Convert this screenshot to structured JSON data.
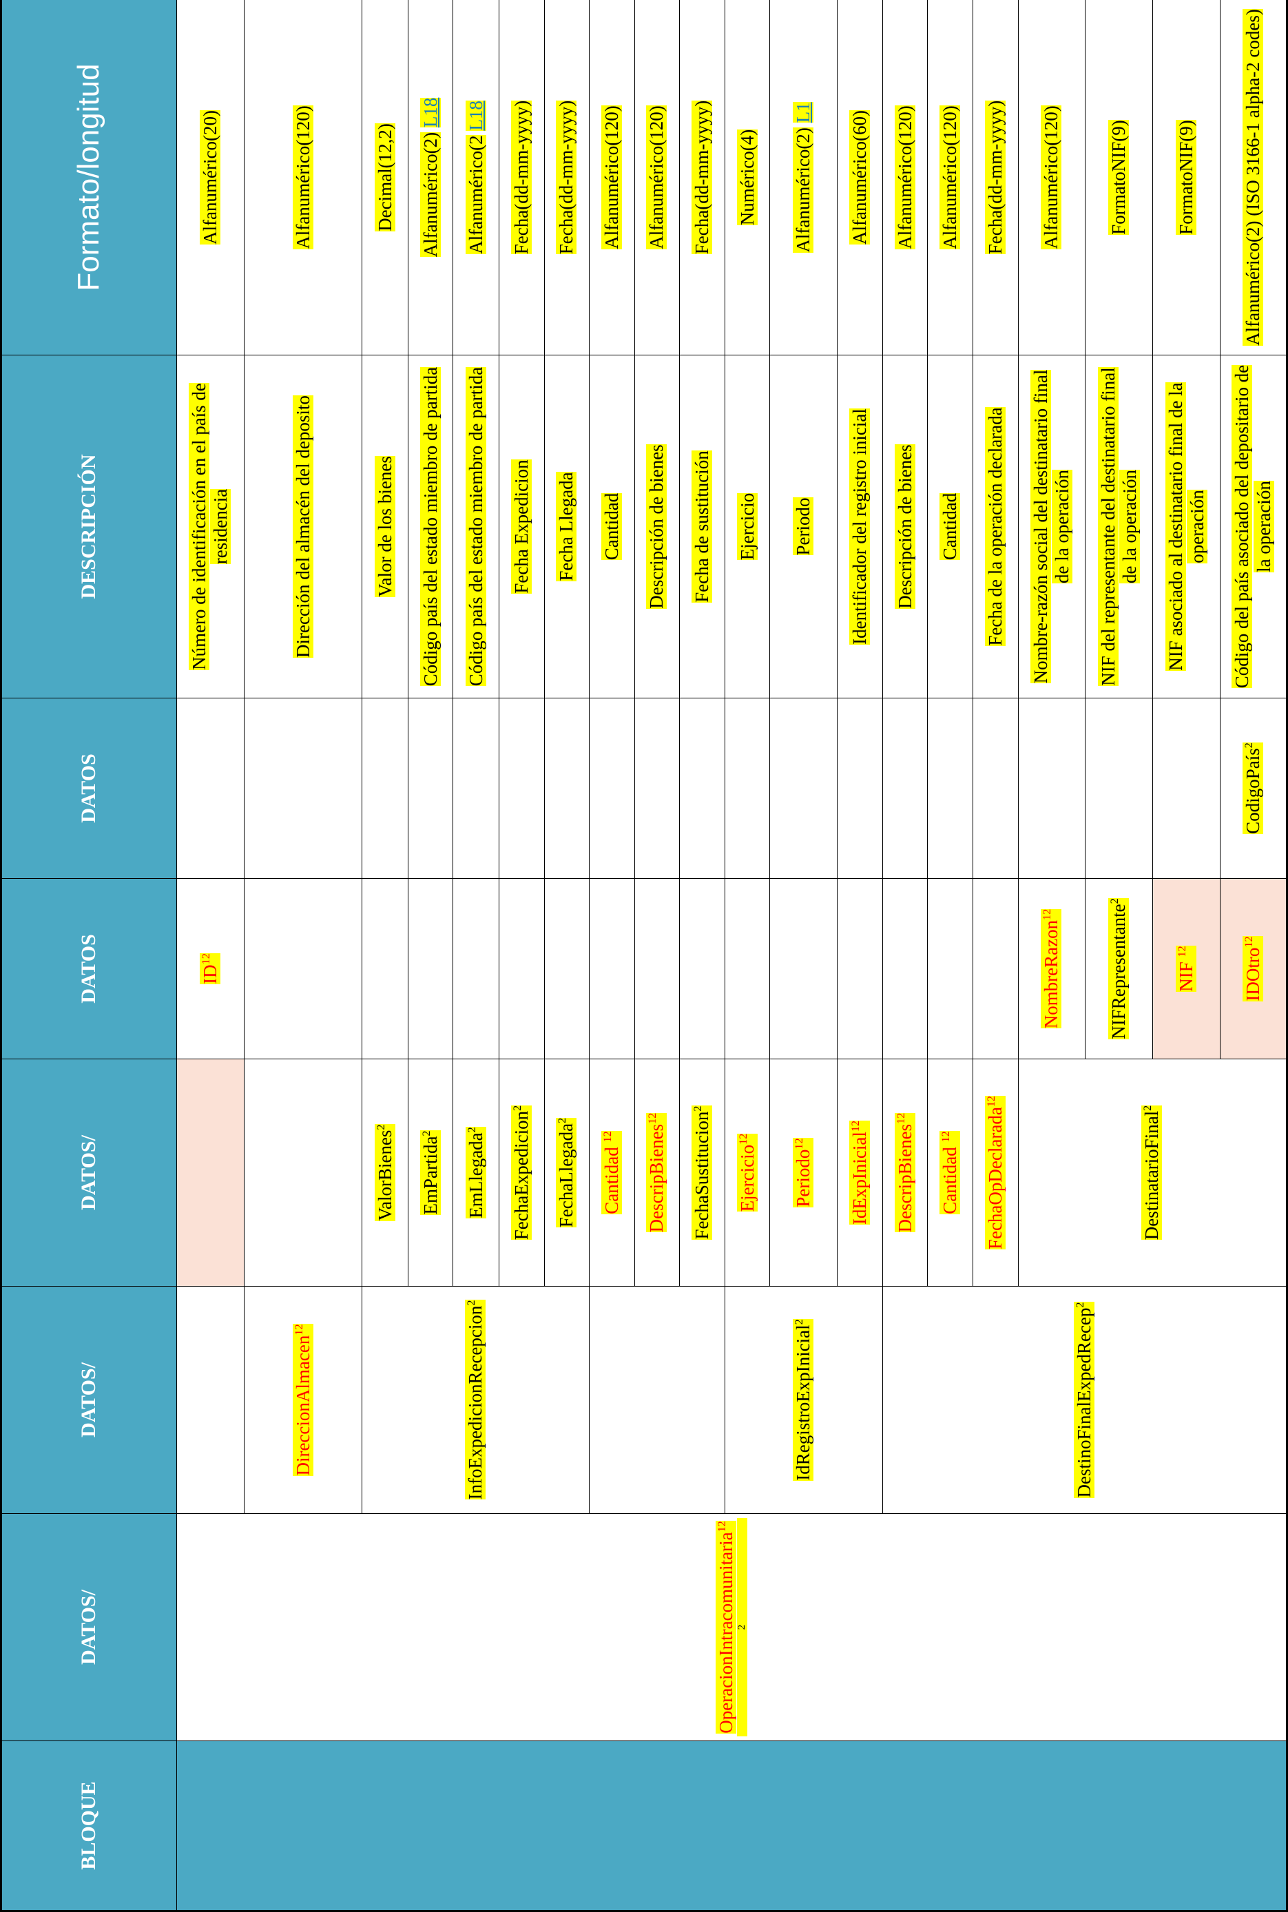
{
  "headers": {
    "bloque": "BLOQUE",
    "datos1": "DATOS/",
    "datos2": "DATOS/",
    "datos3": "DATOS/",
    "datos4": "DATOS",
    "datos5": "DATOS",
    "descripcion": "DESCRIPCIÓN",
    "formato": "Formato/longitud"
  },
  "sup": {
    "s2": "2",
    "s12": "12"
  },
  "level1": {
    "operacion": "OperacionIntracomunitaria"
  },
  "level2": {
    "direccion": "DireccionAlmacen",
    "info": "InfoExpedicionRecepcion",
    "idregistro": "IdRegistroExpInicial",
    "destino": "DestinoFinalExpedRecep"
  },
  "level3": {
    "valor": "ValorBienes",
    "empartida": "EmPartida",
    "emllegada": "EmLlegada",
    "fechaexp": "FechaExpedicion",
    "fechalleg": "FechaLlegada",
    "cantidad1": "Cantidad ",
    "descrip1": "DescripBienes",
    "fechasust": "FechaSustitucion",
    "ejercicio": "Ejercicio",
    "periodo": "Periodo",
    "idexp": "IdExpInicial",
    "descrip2": "DescripBienes",
    "cantidad2": "Cantidad ",
    "fechaop": "FechaOpDeclarada",
    "destinatario": "DestinatarioFinal"
  },
  "level4": {
    "id": "ID",
    "nombre": "NombreRazon",
    "nifrep": "NIFRepresentante",
    "nif": "NIF ",
    "idotro": "IDOtro"
  },
  "level5": {
    "codigo": "CodigoPaís"
  },
  "descripciones": [
    "Número de identificación en el país de residencia",
    "Dirección del almacén del deposito",
    "Valor de los bienes",
    "Código país del estado miembro de partida",
    "Código país del estado miembro de partida",
    "Fecha Expedicion",
    "Fecha Llegada",
    "Cantidad",
    "Descripción de bienes",
    "Fecha de sustitución",
    "Ejercicio",
    "Periodo",
    "Identificador del registro inicial",
    "Descripción de bienes",
    "Cantidad",
    "Fecha de la operación declarada",
    "Nombre-razón social del destinatario final de la operación",
    "NIF del representante del destinatario final de la operación",
    "NIF asociado al destinatario final de la operación",
    "Código del país asociado del depositario de la operación"
  ],
  "formatos": [
    "Alfanumérico(20)",
    "Alfanumérico(120)",
    "Decimal(12,2)",
    "Alfanumérico(2)",
    "Alfanumérico(2",
    "Fecha(dd-mm-yyyy)",
    "Fecha(dd-mm-yyyy)",
    "Alfanumérico(120)",
    "Alfanumérico(120)",
    "Fecha(dd-mm-yyyy)",
    "Numérico(4)",
    "Alfanumérico(2)",
    "Alfanumérico(60)",
    "Alfanumérico(120)",
    "Alfanumérico(120)",
    "Fecha(dd-mm-yyyy)",
    "Alfanumérico(120)",
    "FormatoNIF(9)",
    "FormatoNIF(9)",
    "Alfanumérico(2) (ISO 3166-1 alpha-2 codes)"
  ],
  "links": {
    "l18a": "L18",
    "l18b": "L18",
    "l1": "L1"
  },
  "colors": {
    "header": "#4ba9c4",
    "highlight": "#ffff00",
    "red": "#ff0000",
    "peach": "#fbe1d6",
    "link": "#1a7fb5"
  }
}
